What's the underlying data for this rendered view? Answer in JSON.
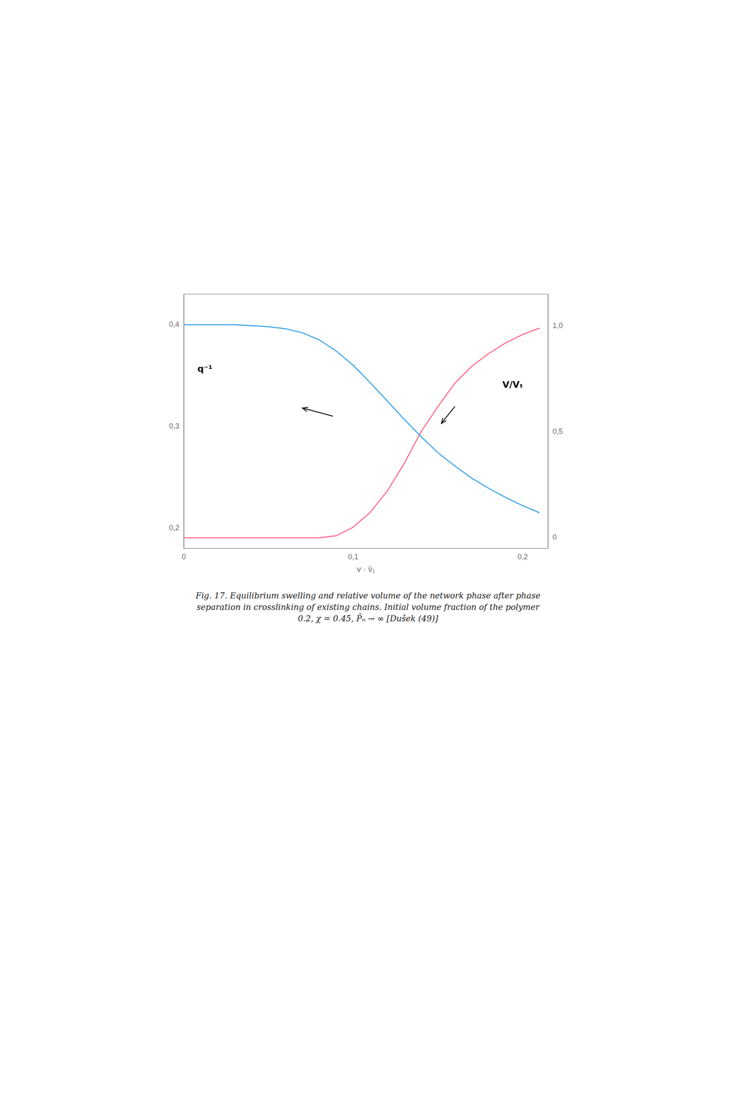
{
  "chart_data": {
    "type": "line",
    "x_label": "v · v̄₁",
    "caption": [
      "Fig. 17. Equilibrium swelling and relative volume of the network phase after phase",
      "separation in crosslinking of existing chains. Initial volume fraction of the polymer",
      "0.2, χ = 0.45, P̄ₙ → ∞ [Dušek (49)]"
    ],
    "x": [
      0.0,
      0.01,
      0.02,
      0.03,
      0.04,
      0.05,
      0.06,
      0.07,
      0.08,
      0.09,
      0.1,
      0.11,
      0.12,
      0.13,
      0.14,
      0.15,
      0.16,
      0.17,
      0.18,
      0.19,
      0.2,
      0.21
    ],
    "series": [
      {
        "values": [
          0.4,
          0.4,
          0.4,
          0.4,
          0.399,
          0.398,
          0.396,
          0.392,
          0.385,
          0.374,
          0.36,
          0.343,
          0.325,
          0.307,
          0.29,
          0.274,
          0.261,
          0.249,
          0.239,
          0.23,
          0.222,
          0.215
        ]
      },
      {
        "values": [
          0.0,
          0.0,
          0.0,
          0.0,
          0.0,
          0.0,
          0.0,
          0.0,
          0.0,
          0.01,
          0.05,
          0.12,
          0.22,
          0.35,
          0.5,
          0.62,
          0.73,
          0.81,
          0.87,
          0.92,
          0.96,
          0.99
        ],
        "axis": "y2"
      }
    ],
    "xlim": [
      0.0,
      0.215
    ],
    "xticks": [
      0,
      {
        "value": 0.1,
        "label": "0,1"
      },
      {
        "value": 0.2,
        "label": "0,2"
      }
    ],
    "ylim": [
      0.18,
      0.43
    ],
    "yticks": [
      {
        "value": 0.2,
        "label": "0,2"
      },
      {
        "value": 0.3,
        "label": "0,3"
      },
      {
        "value": 0.4,
        "label": "0,4"
      }
    ],
    "y2lim": [
      -0.05,
      1.15
    ],
    "y2ticks": [
      0,
      {
        "value": 0.5,
        "label": "0,5"
      },
      {
        "value": 1.0,
        "label": "1,0"
      }
    ],
    "annotations": [
      {
        "text": "q⁻¹",
        "x": 0.008,
        "y": 0.356
      },
      {
        "text": "V/Vₜ",
        "x": 0.188,
        "y": 0.72,
        "axis": "y2"
      }
    ],
    "arrows": [
      {
        "x1": 0.088,
        "y1": 0.31,
        "x2": 0.07,
        "y2": 0.318
      },
      {
        "x1": 0.16,
        "y1": 0.62,
        "x2": 0.152,
        "y2": 0.54,
        "axis": "y2"
      }
    ],
    "grid": false
  }
}
